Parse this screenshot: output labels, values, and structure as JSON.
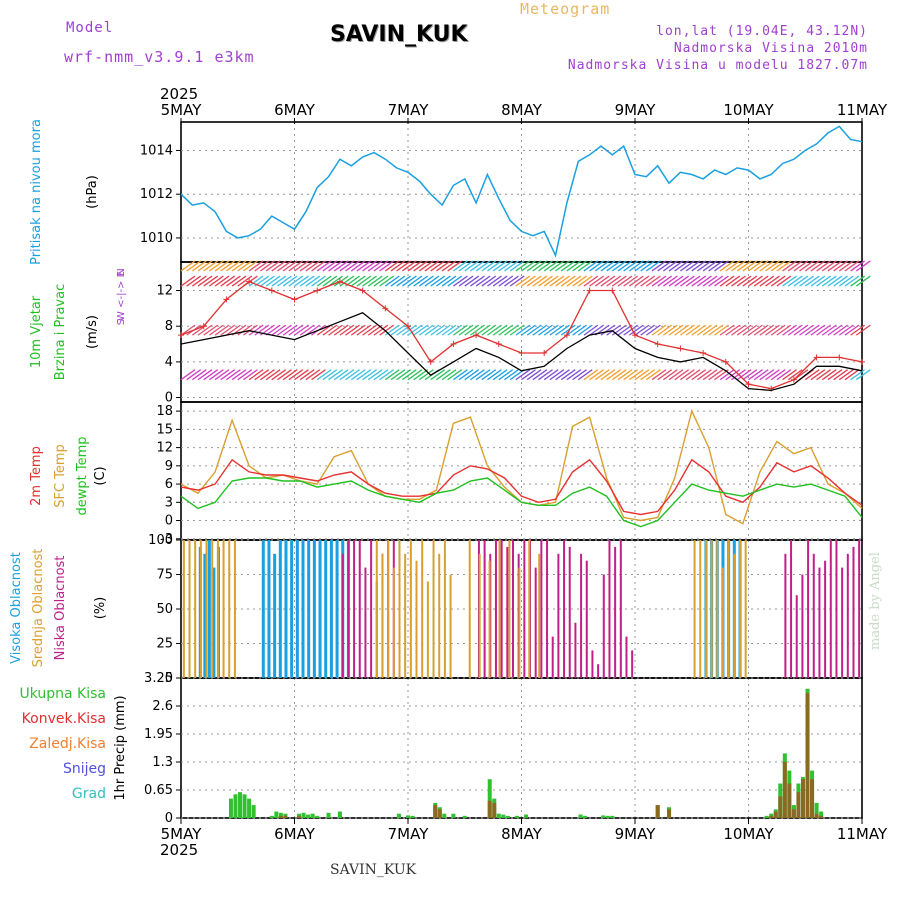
{
  "header": {
    "model_label": "Model",
    "model_name": "wrf-nmm_v3.9.1 e3km",
    "station_title": "SAVIN_KUK",
    "meteogram_label": "Meteogram",
    "lonlat": "lon,lat (19.04E, 43.12N)",
    "elevation": "Nadmorska Visina 2010m",
    "model_elevation": "Nadmorska Visina u modelu 1827.07m",
    "bottom_station": "SAVIN_KUK",
    "made_by": "made by Angel"
  },
  "time_axis": {
    "year": "2025",
    "labels": [
      "5MAY",
      "6MAY",
      "7MAY",
      "8MAY",
      "9MAY",
      "10MAY",
      "11MAY"
    ]
  },
  "colors": {
    "pressure": "#1aa0e0",
    "wind_speed": "#000000",
    "gust": "#e03030",
    "temp2m": "#e83030",
    "sfc_temp": "#d8a030",
    "dewpt": "#20c020",
    "cloud_high": "#1aa0e0",
    "cloud_mid": "#d8a030",
    "cloud_low": "#c0208a",
    "precip_total": "#30c030",
    "precip_conv": "#e03030",
    "precip_frozen": "#f08030",
    "snow": "#5050e0",
    "hail": "#30c0c0"
  },
  "chart_data": [
    {
      "type": "line",
      "name": "pressure",
      "ylabel_main": "Pritisak na nivou mora",
      "ylabel_unit": "(hPa)",
      "ylim": [
        1008.9,
        1015.3
      ],
      "yticks": [
        1010,
        1012,
        1014
      ],
      "x_days": [
        0,
        0.1,
        0.2,
        0.3,
        0.4,
        0.5,
        0.6,
        0.7,
        0.8,
        0.9,
        1.0,
        1.1,
        1.2,
        1.3,
        1.4,
        1.5,
        1.6,
        1.7,
        1.8,
        1.9,
        2.0,
        2.1,
        2.2,
        2.3,
        2.4,
        2.5,
        2.6,
        2.7,
        2.8,
        2.9,
        3.0,
        3.1,
        3.2,
        3.3,
        3.4,
        3.5,
        3.6,
        3.7,
        3.8,
        3.9,
        4.0,
        4.1,
        4.2,
        4.3,
        4.4,
        4.5,
        4.6,
        4.7,
        4.8,
        4.9,
        5.0,
        5.1,
        5.2,
        5.3,
        5.4,
        5.5,
        5.6,
        5.7,
        5.8,
        5.9,
        6.0
      ],
      "values": [
        1012.0,
        1011.5,
        1011.6,
        1011.2,
        1010.3,
        1010.0,
        1010.1,
        1010.4,
        1011.0,
        1010.7,
        1010.4,
        1011.2,
        1012.3,
        1012.8,
        1013.6,
        1013.3,
        1013.7,
        1013.9,
        1013.6,
        1013.2,
        1013.0,
        1012.6,
        1012.0,
        1011.5,
        1012.4,
        1012.7,
        1011.6,
        1012.9,
        1011.8,
        1010.8,
        1010.3,
        1010.1,
        1010.3,
        1009.2,
        1011.6,
        1013.5,
        1013.8,
        1014.2,
        1013.8,
        1014.2,
        1012.9,
        1012.8,
        1013.3,
        1012.5,
        1013.0,
        1012.9,
        1012.7,
        1013.1,
        1012.9,
        1013.2,
        1013.1,
        1012.7,
        1012.9,
        1013.4,
        1013.6,
        1014.0,
        1014.3,
        1014.8,
        1015.1,
        1014.5,
        1014.4
      ]
    },
    {
      "type": "line",
      "name": "wind",
      "ylabel_main": "10m Vjetar",
      "ylabel_sub": "Brzina i Pravac",
      "ylabel_unit": "(m/s)",
      "compass": "N",
      "compass_row": "W <-|-> E",
      "compass_bottom": "S",
      "ylim": [
        -0.5,
        15.2
      ],
      "yticks": [
        0,
        4,
        8,
        12
      ],
      "x_days": [
        0,
        0.2,
        0.4,
        0.6,
        0.8,
        1.0,
        1.2,
        1.4,
        1.6,
        1.8,
        2.0,
        2.2,
        2.4,
        2.6,
        2.8,
        3.0,
        3.2,
        3.4,
        3.6,
        3.8,
        4.0,
        4.2,
        4.4,
        4.6,
        4.8,
        5.0,
        5.2,
        5.4,
        5.6,
        5.8,
        6.0
      ],
      "speed": [
        6,
        6.5,
        7,
        7.5,
        7,
        6.5,
        7.5,
        8.5,
        9.5,
        7.5,
        5,
        2.5,
        4,
        5.5,
        4.5,
        3,
        3.5,
        5.5,
        7,
        7.5,
        5.5,
        4.5,
        4,
        4.5,
        3,
        1,
        0.8,
        1.5,
        3.5,
        3.5,
        3
      ],
      "gust": [
        7,
        8,
        11,
        13,
        12,
        11,
        12,
        13,
        12,
        10,
        8,
        4,
        6,
        7,
        6,
        5,
        5,
        7,
        12,
        12,
        7,
        6,
        5.5,
        5,
        4,
        1.5,
        1,
        2,
        4.5,
        4.5,
        4
      ]
    },
    {
      "type": "line",
      "name": "temperature",
      "ylabel_a": "2m Temp",
      "ylabel_b": "SFC Temp",
      "ylabel_c": "dewpt Temp",
      "ylabel_unit": "(C)",
      "ylim": [
        -3.2,
        19.5
      ],
      "yticks": [
        -3,
        0,
        3,
        6,
        9,
        12,
        15,
        18
      ],
      "x_days": [
        0,
        0.15,
        0.3,
        0.45,
        0.6,
        0.75,
        0.9,
        1.05,
        1.2,
        1.35,
        1.5,
        1.65,
        1.8,
        1.95,
        2.1,
        2.25,
        2.4,
        2.55,
        2.7,
        2.85,
        3.0,
        3.15,
        3.3,
        3.45,
        3.6,
        3.75,
        3.9,
        4.05,
        4.2,
        4.35,
        4.5,
        4.65,
        4.8,
        4.95,
        5.1,
        5.25,
        5.4,
        5.55,
        5.7,
        5.85,
        6.0
      ],
      "t2m": [
        5.5,
        5,
        6,
        10,
        8,
        7.5,
        7.5,
        7,
        6.5,
        7.5,
        8,
        6,
        4.5,
        4,
        4,
        4.5,
        7.5,
        9,
        8.5,
        7,
        4,
        3,
        3.5,
        8,
        10,
        6.5,
        1.5,
        1,
        1.5,
        5,
        10,
        8,
        4,
        3,
        5.5,
        9.5,
        8,
        9,
        7,
        4.5,
        2.5
      ],
      "sfc": [
        6,
        4.5,
        8,
        16.5,
        9,
        7,
        7.5,
        6.5,
        6,
        10.5,
        11.5,
        6,
        4,
        3.5,
        3.5,
        5,
        16,
        17,
        9,
        5.5,
        3,
        2.5,
        3,
        15.5,
        17,
        7,
        0.5,
        0,
        0.5,
        7,
        18,
        12,
        1,
        -0.5,
        8,
        13,
        11,
        12,
        6,
        4.5,
        2
      ],
      "dewpt": [
        4,
        2,
        3,
        6.5,
        7,
        7,
        6.5,
        6.5,
        5.5,
        6,
        6.5,
        5,
        4,
        3.5,
        3,
        4.5,
        5,
        6.5,
        7,
        5,
        3,
        2.5,
        2.5,
        4.5,
        5.5,
        4,
        0,
        -1,
        0,
        3,
        6,
        5,
        4.5,
        4,
        5,
        6,
        5.5,
        6,
        5,
        4,
        0.5
      ]
    },
    {
      "type": "bar",
      "name": "clouds",
      "ylabel_a": "Visoka Oblacnost",
      "ylabel_b": "Srednja Oblacnost",
      "ylabel_c": "Niska Oblacnost",
      "ylabel_unit": "(%)",
      "ylim": [
        0,
        100
      ],
      "yticks": [
        0,
        25,
        50,
        75,
        100
      ],
      "bars": [
        {
          "layer": "high",
          "x_start": 0.15,
          "x_end": 0.35,
          "values": [
            95,
            90,
            100,
            80,
            95
          ]
        },
        {
          "layer": "mid",
          "x_start": 0.0,
          "x_end": 0.5,
          "values": [
            100,
            100,
            100,
            100,
            100,
            100,
            100,
            100,
            100,
            100
          ]
        },
        {
          "layer": "high",
          "x_start": 0.7,
          "x_end": 1.0,
          "values": [
            100,
            100,
            90,
            100,
            100,
            100
          ]
        },
        {
          "layer": "high",
          "x_start": 1.0,
          "x_end": 1.5,
          "values": [
            100,
            100,
            100,
            100,
            100,
            100,
            100,
            100,
            100,
            100
          ]
        },
        {
          "layer": "low",
          "x_start": 1.4,
          "x_end": 1.9,
          "values": [
            90,
            100,
            100,
            100,
            80,
            100,
            70,
            90,
            100,
            100
          ]
        },
        {
          "layer": "mid",
          "x_start": 1.7,
          "x_end": 2.4,
          "values": [
            100,
            90,
            100,
            80,
            100,
            90,
            100,
            85,
            100,
            70,
            100,
            90,
            100,
            75
          ]
        },
        {
          "layer": "low",
          "x_start": 2.6,
          "x_end": 3.2,
          "values": [
            100,
            100,
            90,
            100,
            100,
            95,
            100,
            90,
            100,
            100,
            80,
            100
          ]
        },
        {
          "layer": "mid",
          "x_start": 2.5,
          "x_end": 3.2,
          "values": [
            100,
            90,
            85,
            100,
            100,
            80,
            100,
            90
          ]
        },
        {
          "layer": "low",
          "x_start": 3.2,
          "x_end": 4.0,
          "values": [
            100,
            30,
            90,
            100,
            95,
            40,
            90,
            85,
            20,
            10,
            75,
            100,
            95,
            100,
            30,
            20
          ]
        },
        {
          "layer": "high",
          "x_start": 4.6,
          "x_end": 4.95,
          "values": [
            100,
            100,
            100,
            100,
            100,
            100,
            100
          ]
        },
        {
          "layer": "mid",
          "x_start": 4.5,
          "x_end": 5.0,
          "values": [
            100,
            100,
            100,
            100,
            100,
            80,
            100,
            90,
            100,
            100
          ]
        },
        {
          "layer": "low",
          "x_start": 5.3,
          "x_end": 6.0,
          "values": [
            90,
            100,
            60,
            75,
            100,
            90,
            80,
            85,
            100,
            100,
            80,
            90,
            95,
            100
          ]
        }
      ]
    },
    {
      "type": "bar",
      "name": "precipitation",
      "ylabel_main": "1hr Precip",
      "ylabel_unit": "(mm)",
      "legend": [
        "Ukupna Kisa",
        "Konvek.Kisa",
        "Zaledj.Kisa",
        "Snijeg",
        "Grad"
      ],
      "ylim": [
        0,
        3.25
      ],
      "yticks": [
        0,
        0.65,
        1.3,
        1.95,
        2.6,
        3.25
      ],
      "ytick_labels": [
        "0",
        "0.65",
        "1.3",
        "1.95",
        "2.6",
        "3.25"
      ],
      "x_days": [
        0.44,
        0.48,
        0.52,
        0.56,
        0.6,
        0.64,
        0.8,
        0.84,
        0.88,
        0.92,
        1.04,
        1.08,
        1.12,
        1.16,
        1.2,
        1.3,
        1.4,
        1.4,
        1.92,
        2.0,
        2.04,
        2.24,
        2.28,
        2.32,
        2.4,
        2.5,
        2.72,
        2.76,
        2.8,
        2.84,
        2.88,
        2.96,
        3.04,
        3.52,
        3.56,
        3.72,
        3.76,
        3.8,
        4.2,
        4.3,
        5.16,
        5.2,
        5.24,
        5.28,
        5.32,
        5.36,
        5.4,
        5.44,
        5.48,
        5.52,
        5.56,
        5.6,
        5.64
      ],
      "total": [
        0.45,
        0.55,
        0.6,
        0.55,
        0.45,
        0.3,
        0.05,
        0.15,
        0.12,
        0.1,
        0.1,
        0.12,
        0.08,
        0.1,
        0.05,
        0.12,
        0.15,
        0.08,
        0.1,
        0.06,
        0.05,
        0.35,
        0.25,
        0.1,
        0.1,
        0.05,
        0.9,
        0.45,
        0.1,
        0.08,
        0.05,
        0.05,
        0.08,
        0.08,
        0.05,
        0.06,
        0.05,
        0.05,
        0.3,
        0.25,
        0.05,
        0.1,
        0.2,
        0.8,
        1.5,
        1.1,
        0.3,
        0.8,
        0.95,
        3.0,
        1.1,
        0.35,
        0.15
      ],
      "convective": [
        0,
        0,
        0,
        0,
        0,
        0,
        0,
        0,
        0.05,
        0.05,
        0.05,
        0,
        0,
        0,
        0,
        0,
        0,
        0,
        0,
        0,
        0,
        0.3,
        0.2,
        0,
        0,
        0,
        0.4,
        0.35,
        0,
        0,
        0,
        0,
        0,
        0,
        0,
        0,
        0,
        0,
        0.3,
        0.2,
        0,
        0.05,
        0.15,
        0.5,
        1.3,
        0.8,
        0.2,
        0.6,
        0.9,
        2.9,
        0.9,
        0.1,
        0.05
      ]
    }
  ]
}
